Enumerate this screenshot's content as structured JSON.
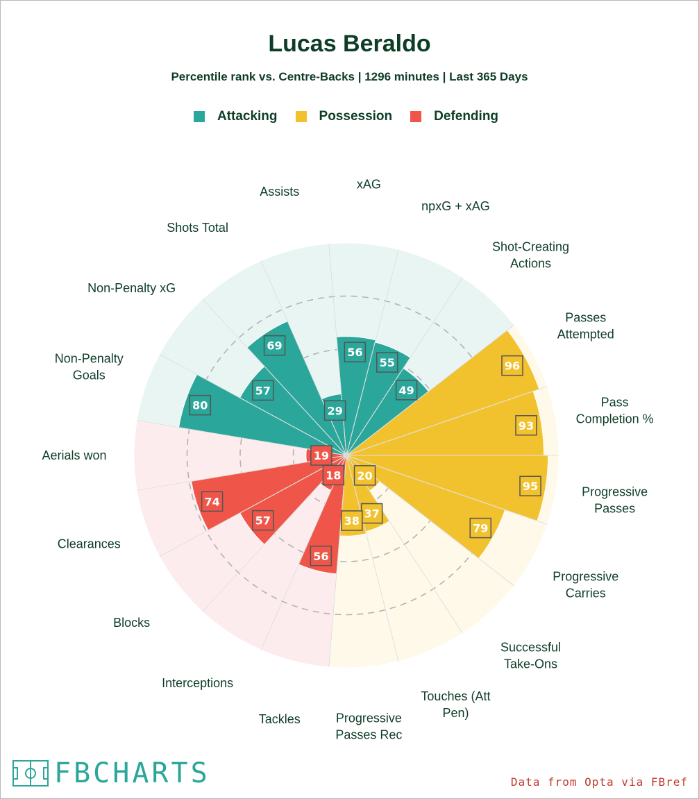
{
  "page": {
    "title": "Lucas Beraldo",
    "subtitle": "Percentile rank vs. Centre-Backs | 1296 minutes | Last 365 Days",
    "logo_text": "FBCHARTS",
    "credit": "Data from Opta via FBref"
  },
  "legend": [
    {
      "label": "Attacking",
      "color": "#2aa69a"
    },
    {
      "label": "Possession",
      "color": "#f2c12e"
    },
    {
      "label": "Defending",
      "color": "#ef5649"
    }
  ],
  "colors": {
    "attacking": "#2aa69a",
    "possession": "#f2c12e",
    "defending": "#ef5649",
    "attacking_bg": "#e8f5f3",
    "possession_bg": "#fef9e9",
    "defending_bg": "#fdeced",
    "text": "#0e3d27",
    "credit": "#c0392b"
  },
  "chart_data": {
    "type": "polar-bar",
    "scale": [
      0,
      100
    ],
    "gridlines": [
      25,
      50,
      75
    ],
    "segments": [
      {
        "label": "Progressive Passes",
        "group": "possession",
        "value": 95
      },
      {
        "label": "Progressive Carries",
        "group": "possession",
        "value": 79
      },
      {
        "label": "Successful Take-Ons",
        "group": "possession",
        "value": 20
      },
      {
        "label": "Touches (Att Pen)",
        "group": "possession",
        "value": 37
      },
      {
        "label": "Progressive Passes Rec",
        "group": "possession",
        "value": 38
      },
      {
        "label": "Tackles",
        "group": "defending",
        "value": 56
      },
      {
        "label": "Interceptions",
        "group": "defending",
        "value": 18
      },
      {
        "label": "Blocks",
        "group": "defending",
        "value": 57
      },
      {
        "label": "Clearances",
        "group": "defending",
        "value": 74
      },
      {
        "label": "Aerials won",
        "group": "defending",
        "value": 19
      },
      {
        "label": "Non-Penalty Goals",
        "group": "attacking",
        "value": 80
      },
      {
        "label": "Non-Penalty xG",
        "group": "attacking",
        "value": 57
      },
      {
        "label": "Shots Total",
        "group": "attacking",
        "value": 69
      },
      {
        "label": "Assists",
        "group": "attacking",
        "value": 29
      },
      {
        "label": "xAG",
        "group": "attacking",
        "value": 56
      },
      {
        "label": "npxG + xAG",
        "group": "attacking",
        "value": 55
      },
      {
        "label": "Shot-Creating Actions",
        "group": "attacking",
        "value": 49
      },
      {
        "label": "Passes Attempted",
        "group": "possession",
        "value": 96
      },
      {
        "label": "Pass Completion %",
        "group": "possession",
        "value": 93
      }
    ]
  }
}
